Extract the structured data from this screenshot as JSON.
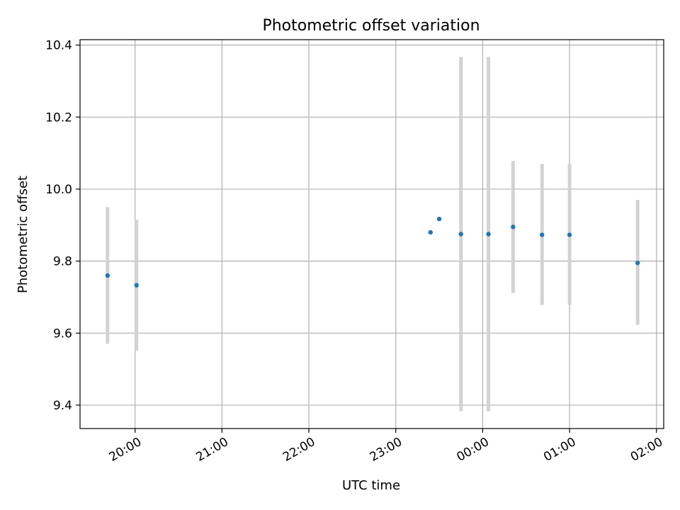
{
  "chart_data": {
    "type": "scatter",
    "title": "Photometric offset variation",
    "xlabel": "UTC time",
    "ylabel": "Photometric offset",
    "x_tick_labels": [
      "20:00",
      "21:00",
      "22:00",
      "23:00",
      "00:00",
      "01:00",
      "02:00"
    ],
    "y_tick_labels": [
      "9.4",
      "9.6",
      "9.8",
      "10.0",
      "10.2",
      "10.4"
    ],
    "ylim": [
      9.335,
      10.415
    ],
    "xlim": [
      "19:22",
      "02:05"
    ],
    "grid": true,
    "colors": {
      "points": "#1f77b4",
      "errorbars": "#d3d3d3",
      "grid": "#b0b0b0"
    },
    "series": [
      {
        "points": [
          {
            "time": "19:41",
            "y": 9.76,
            "err_low": 9.57,
            "err_high": 9.95
          },
          {
            "time": "20:01",
            "y": 9.733,
            "err_low": 9.552,
            "err_high": 9.915
          },
          {
            "time": "23:24",
            "y": 9.88,
            "err_low": null,
            "err_high": null
          },
          {
            "time": "23:30",
            "y": 9.917,
            "err_low": null,
            "err_high": null
          },
          {
            "time": "23:45",
            "y": 9.875,
            "err_low": 9.383,
            "err_high": 10.367
          },
          {
            "time": "00:04",
            "y": 9.875,
            "err_low": 9.383,
            "err_high": 10.367
          },
          {
            "time": "00:21",
            "y": 9.895,
            "err_low": 9.712,
            "err_high": 10.078
          },
          {
            "time": "00:41",
            "y": 9.873,
            "err_low": 9.678,
            "err_high": 10.07
          },
          {
            "time": "01:00",
            "y": 9.873,
            "err_low": 9.678,
            "err_high": 10.07
          },
          {
            "time": "01:47",
            "y": 9.795,
            "err_low": 9.623,
            "err_high": 9.97
          }
        ]
      }
    ]
  }
}
